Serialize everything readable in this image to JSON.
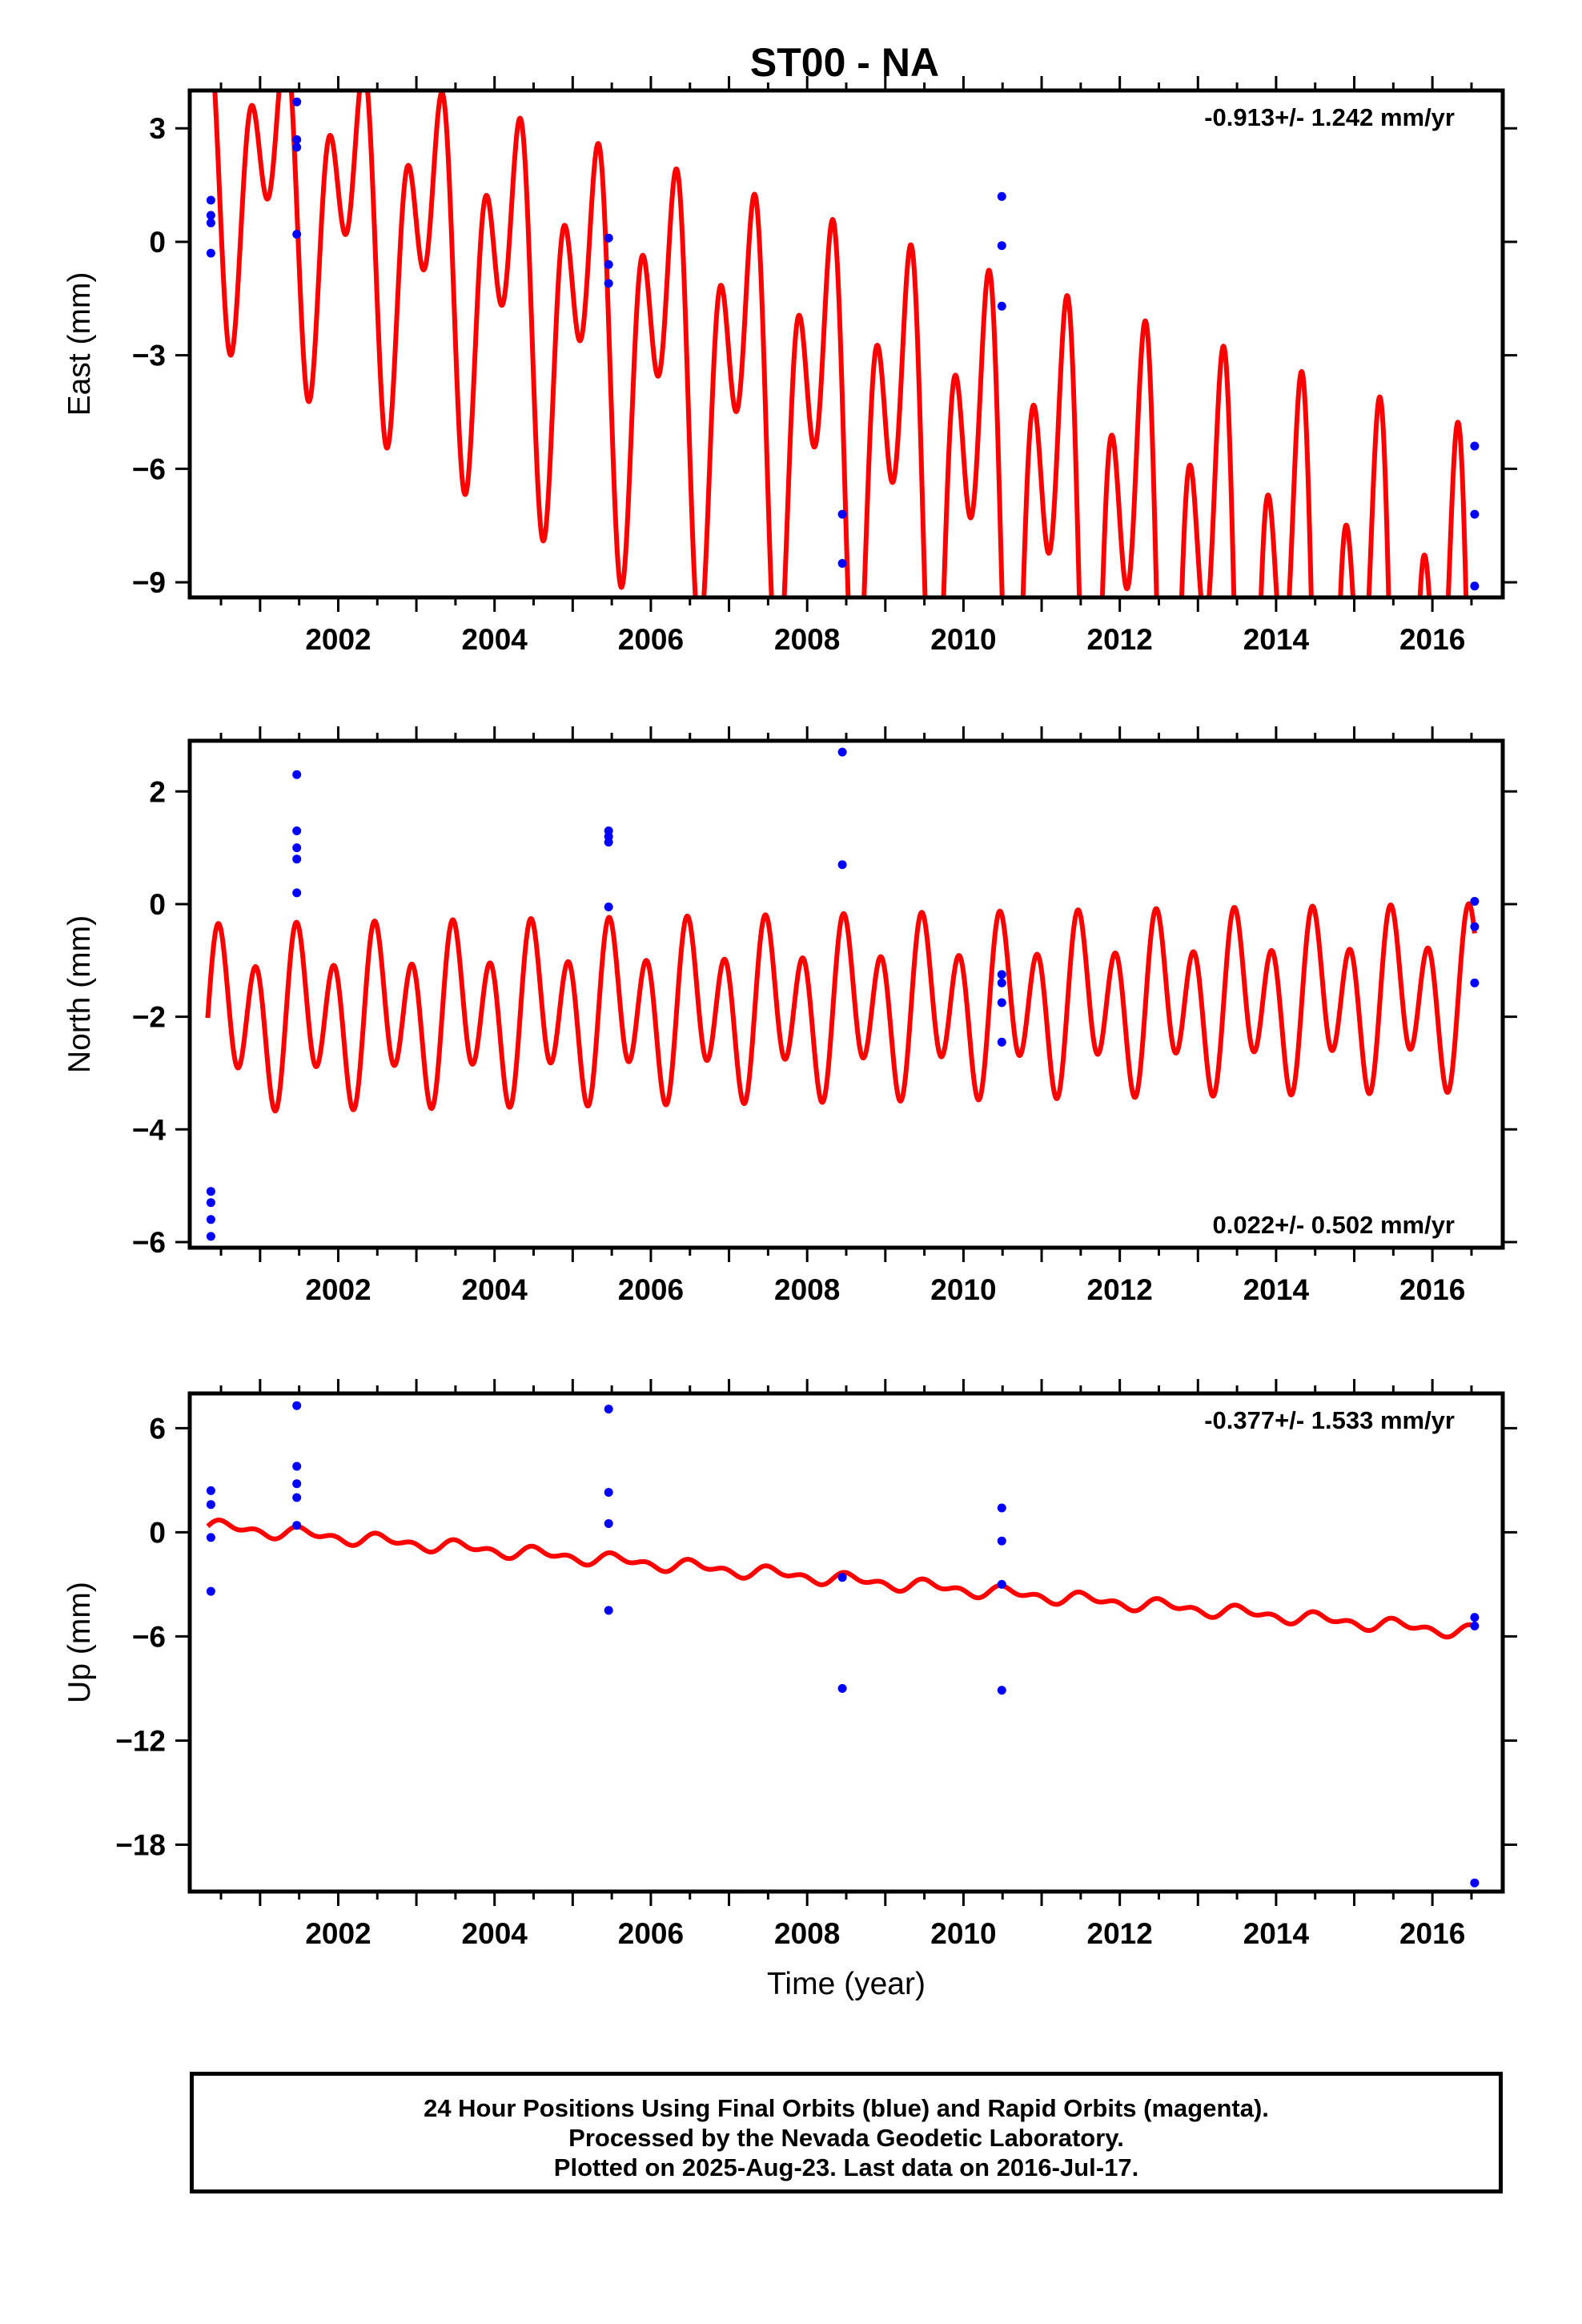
{
  "title": "ST00 - NA",
  "colors": {
    "model": "#ff0000",
    "final_orbits": "#0000ff",
    "frame": "#000000"
  },
  "caption": {
    "line1": "24 Hour Positions Using Final Orbits (blue) and Rapid Orbits (magenta).",
    "line2": "Processed by the Nevada Geodetic Laboratory.",
    "line3": "Plotted on 2025-Aug-23. Last data on 2016-Jul-17."
  },
  "chart_data": [
    {
      "type": "scatter",
      "ylabel": "East (mm)",
      "xlabel": "",
      "xlim": [
        2000.1,
        2016.9
      ],
      "ylim": [
        -9.4,
        4.0
      ],
      "yticks": [
        3,
        0,
        -3,
        -6,
        -9
      ],
      "yticklabels": [
        "3",
        "0",
        "−3",
        "−6",
        "−9"
      ],
      "xticks": [
        2002,
        2004,
        2006,
        2008,
        2010,
        2012,
        2014,
        2016
      ],
      "rate_label": "-0.913+/- 1.242 mm/yr",
      "rate_position": "top-right",
      "grid": false,
      "points": [
        [
          2000.37,
          1.1
        ],
        [
          2000.37,
          0.7
        ],
        [
          2000.37,
          0.5
        ],
        [
          2000.37,
          -0.3
        ],
        [
          2001.47,
          3.7
        ],
        [
          2001.47,
          2.7
        ],
        [
          2001.47,
          2.5
        ],
        [
          2001.47,
          0.2
        ],
        [
          2005.46,
          0.1
        ],
        [
          2005.46,
          -0.6
        ],
        [
          2005.46,
          -1.1
        ],
        [
          2008.45,
          -7.2
        ],
        [
          2008.45,
          -8.5
        ],
        [
          2010.49,
          1.2
        ],
        [
          2010.49,
          -0.1
        ],
        [
          2010.49,
          -1.7
        ],
        [
          2016.54,
          -5.4
        ],
        [
          2016.54,
          -7.2
        ],
        [
          2016.54,
          -9.1
        ]
      ],
      "model": {
        "t0": 2000.33,
        "t1": 2016.54,
        "offset": 2.2,
        "rate": -0.913,
        "annual_amp": 2.45,
        "annual_phase": 2.55,
        "semiannual_amp": 2.55,
        "semiannual_phase": 1.2,
        "amp_growth": 0.065
      }
    },
    {
      "type": "scatter",
      "ylabel": "North (mm)",
      "xlabel": "",
      "xlim": [
        2000.1,
        2016.9
      ],
      "ylim": [
        -6.1,
        2.9
      ],
      "yticks": [
        2,
        0,
        -2,
        -4,
        -6
      ],
      "yticklabels": [
        "2",
        "0",
        "−2",
        "−4",
        "−6"
      ],
      "xticks": [
        2002,
        2004,
        2006,
        2008,
        2010,
        2012,
        2014,
        2016
      ],
      "rate_label": "0.022+/- 0.502 mm/yr",
      "rate_position": "bottom-right",
      "grid": false,
      "points": [
        [
          2000.37,
          -5.1
        ],
        [
          2000.37,
          -5.3
        ],
        [
          2000.37,
          -5.6
        ],
        [
          2000.37,
          -5.9
        ],
        [
          2001.47,
          2.3
        ],
        [
          2001.47,
          1.3
        ],
        [
          2001.47,
          1.0
        ],
        [
          2001.47,
          0.8
        ],
        [
          2001.47,
          0.2
        ],
        [
          2005.46,
          1.3
        ],
        [
          2005.46,
          1.2
        ],
        [
          2005.46,
          1.1
        ],
        [
          2005.46,
          -0.05
        ],
        [
          2008.45,
          2.7
        ],
        [
          2008.45,
          0.7
        ],
        [
          2010.49,
          -1.25
        ],
        [
          2010.49,
          -1.4
        ],
        [
          2010.49,
          -1.75
        ],
        [
          2010.49,
          -2.45
        ],
        [
          2016.54,
          0.05
        ],
        [
          2016.54,
          -0.4
        ],
        [
          2016.54,
          -1.4
        ]
      ],
      "model": {
        "t0": 2000.33,
        "t1": 2016.54,
        "offset": -2.02,
        "rate": 0.022,
        "annual_amp": 0.55,
        "annual_phase": 0.0,
        "semiannual_amp": 1.27,
        "semiannual_phase": 0.0,
        "amp_growth": 0.0
      }
    },
    {
      "type": "scatter",
      "ylabel": "Up (mm)",
      "xlabel": "Time (year)",
      "xlim": [
        2000.1,
        2016.9
      ],
      "ylim": [
        -20.7,
        8.0
      ],
      "yticks": [
        6,
        0,
        -6,
        -12,
        -18
      ],
      "yticklabels": [
        "6",
        "0",
        "−6",
        "−12",
        "−18"
      ],
      "xticks": [
        2002,
        2004,
        2006,
        2008,
        2010,
        2012,
        2014,
        2016
      ],
      "rate_label": "-0.377+/- 1.533 mm/yr",
      "rate_position": "top-right",
      "grid": false,
      "points": [
        [
          2000.37,
          2.4
        ],
        [
          2000.37,
          1.6
        ],
        [
          2000.37,
          -0.3
        ],
        [
          2000.37,
          -3.4
        ],
        [
          2001.47,
          7.3
        ],
        [
          2001.47,
          3.8
        ],
        [
          2001.47,
          2.8
        ],
        [
          2001.47,
          2.0
        ],
        [
          2001.47,
          0.4
        ],
        [
          2005.46,
          7.1
        ],
        [
          2005.46,
          2.3
        ],
        [
          2005.46,
          0.5
        ],
        [
          2005.46,
          -4.5
        ],
        [
          2008.45,
          -2.6
        ],
        [
          2008.45,
          -9.0
        ],
        [
          2010.49,
          1.4
        ],
        [
          2010.49,
          -0.5
        ],
        [
          2010.49,
          -3.0
        ],
        [
          2010.49,
          -9.1
        ],
        [
          2016.54,
          -4.9
        ],
        [
          2016.54,
          -5.4
        ],
        [
          2016.54,
          -20.2
        ]
      ],
      "model": {
        "t0": 2000.33,
        "t1": 2016.54,
        "offset": 0.35,
        "rate": -0.377,
        "annual_amp": 0.25,
        "annual_phase": 0.0,
        "semiannual_amp": 0.22,
        "semiannual_phase": 0.0,
        "amp_growth": 0.0
      }
    }
  ]
}
